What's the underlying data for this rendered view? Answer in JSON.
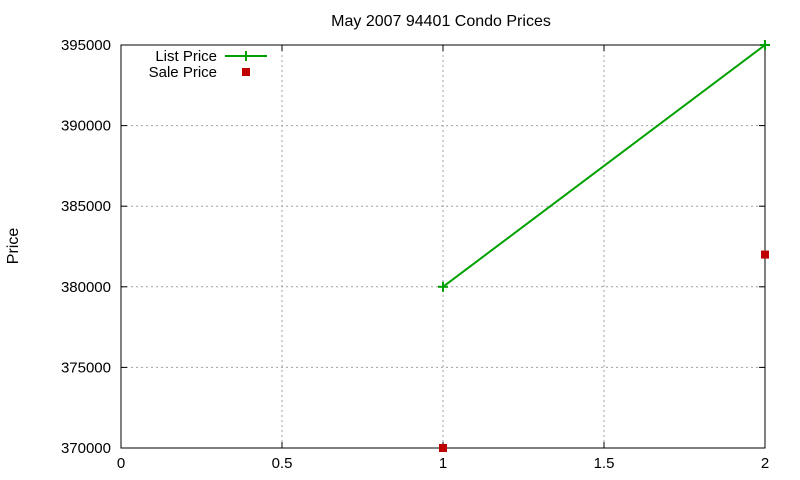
{
  "chart_data": {
    "type": "line",
    "title": "May 2007 94401 Condo Prices",
    "xlabel": "",
    "ylabel": "Price",
    "xlim": [
      0,
      2
    ],
    "ylim": [
      370000,
      395000
    ],
    "xticks": [
      "0",
      "0.5",
      "1",
      "1.5",
      "2"
    ],
    "yticks": [
      "370000",
      "375000",
      "380000",
      "385000",
      "390000",
      "395000"
    ],
    "grid": true,
    "legend_position": "top-left",
    "series": [
      {
        "name": "List Price",
        "style": "linespoints",
        "marker": "plus",
        "color": "#00a000",
        "x": [
          1,
          2
        ],
        "y": [
          380000,
          395000
        ]
      },
      {
        "name": "Sale Price",
        "style": "points",
        "marker": "square",
        "color": "#c00000",
        "x": [
          1,
          2
        ],
        "y": [
          370000,
          382000
        ]
      }
    ]
  }
}
